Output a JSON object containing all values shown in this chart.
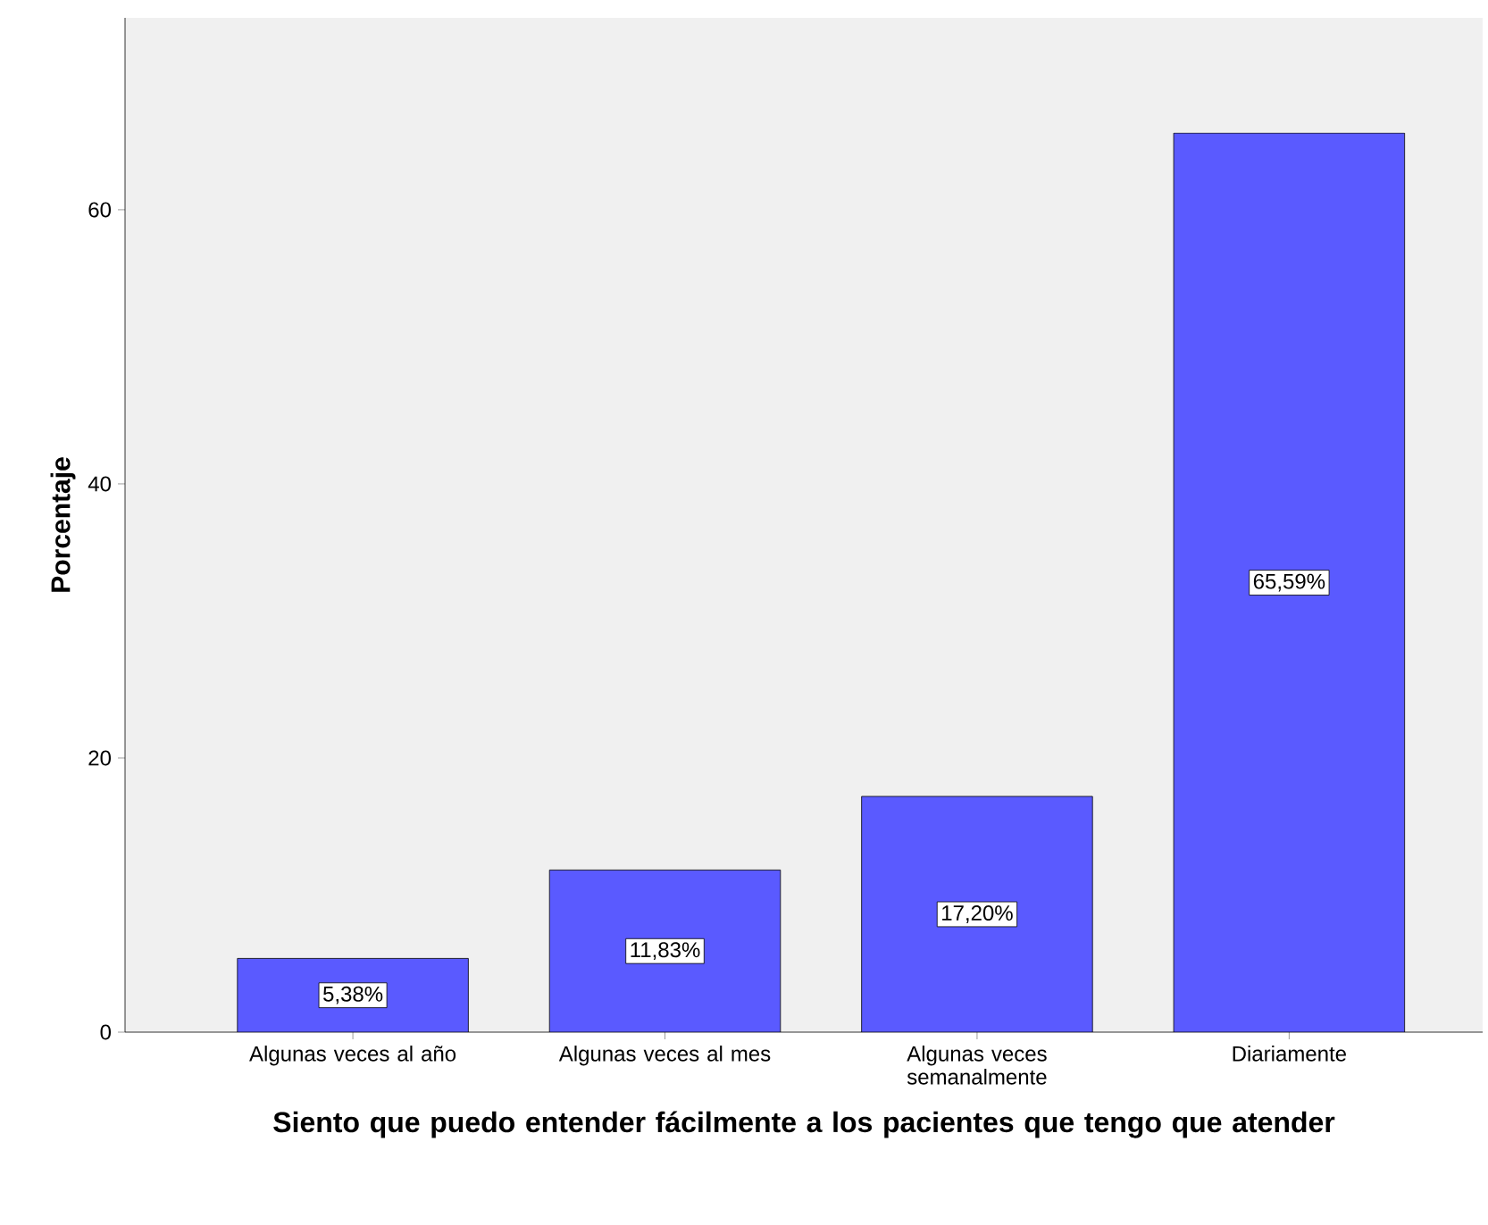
{
  "chart_data": {
    "type": "bar",
    "xlabel": "Siento que puedo entender fácilmente a los pacientes que tengo que atender",
    "ylabel": "Porcentaje",
    "categories": [
      "Algunas veces al año",
      "Algunas veces al mes",
      "Algunas veces semanalmente",
      "Diariamente"
    ],
    "values": [
      5.38,
      11.83,
      17.2,
      65.59
    ],
    "value_labels": [
      "5,38%",
      "11,83%",
      "17,20%",
      "65,59%"
    ],
    "color": "#5a5aff",
    "ylim": [
      0,
      74
    ],
    "yticks": [
      0,
      20,
      40,
      60
    ],
    "grid": false
  }
}
